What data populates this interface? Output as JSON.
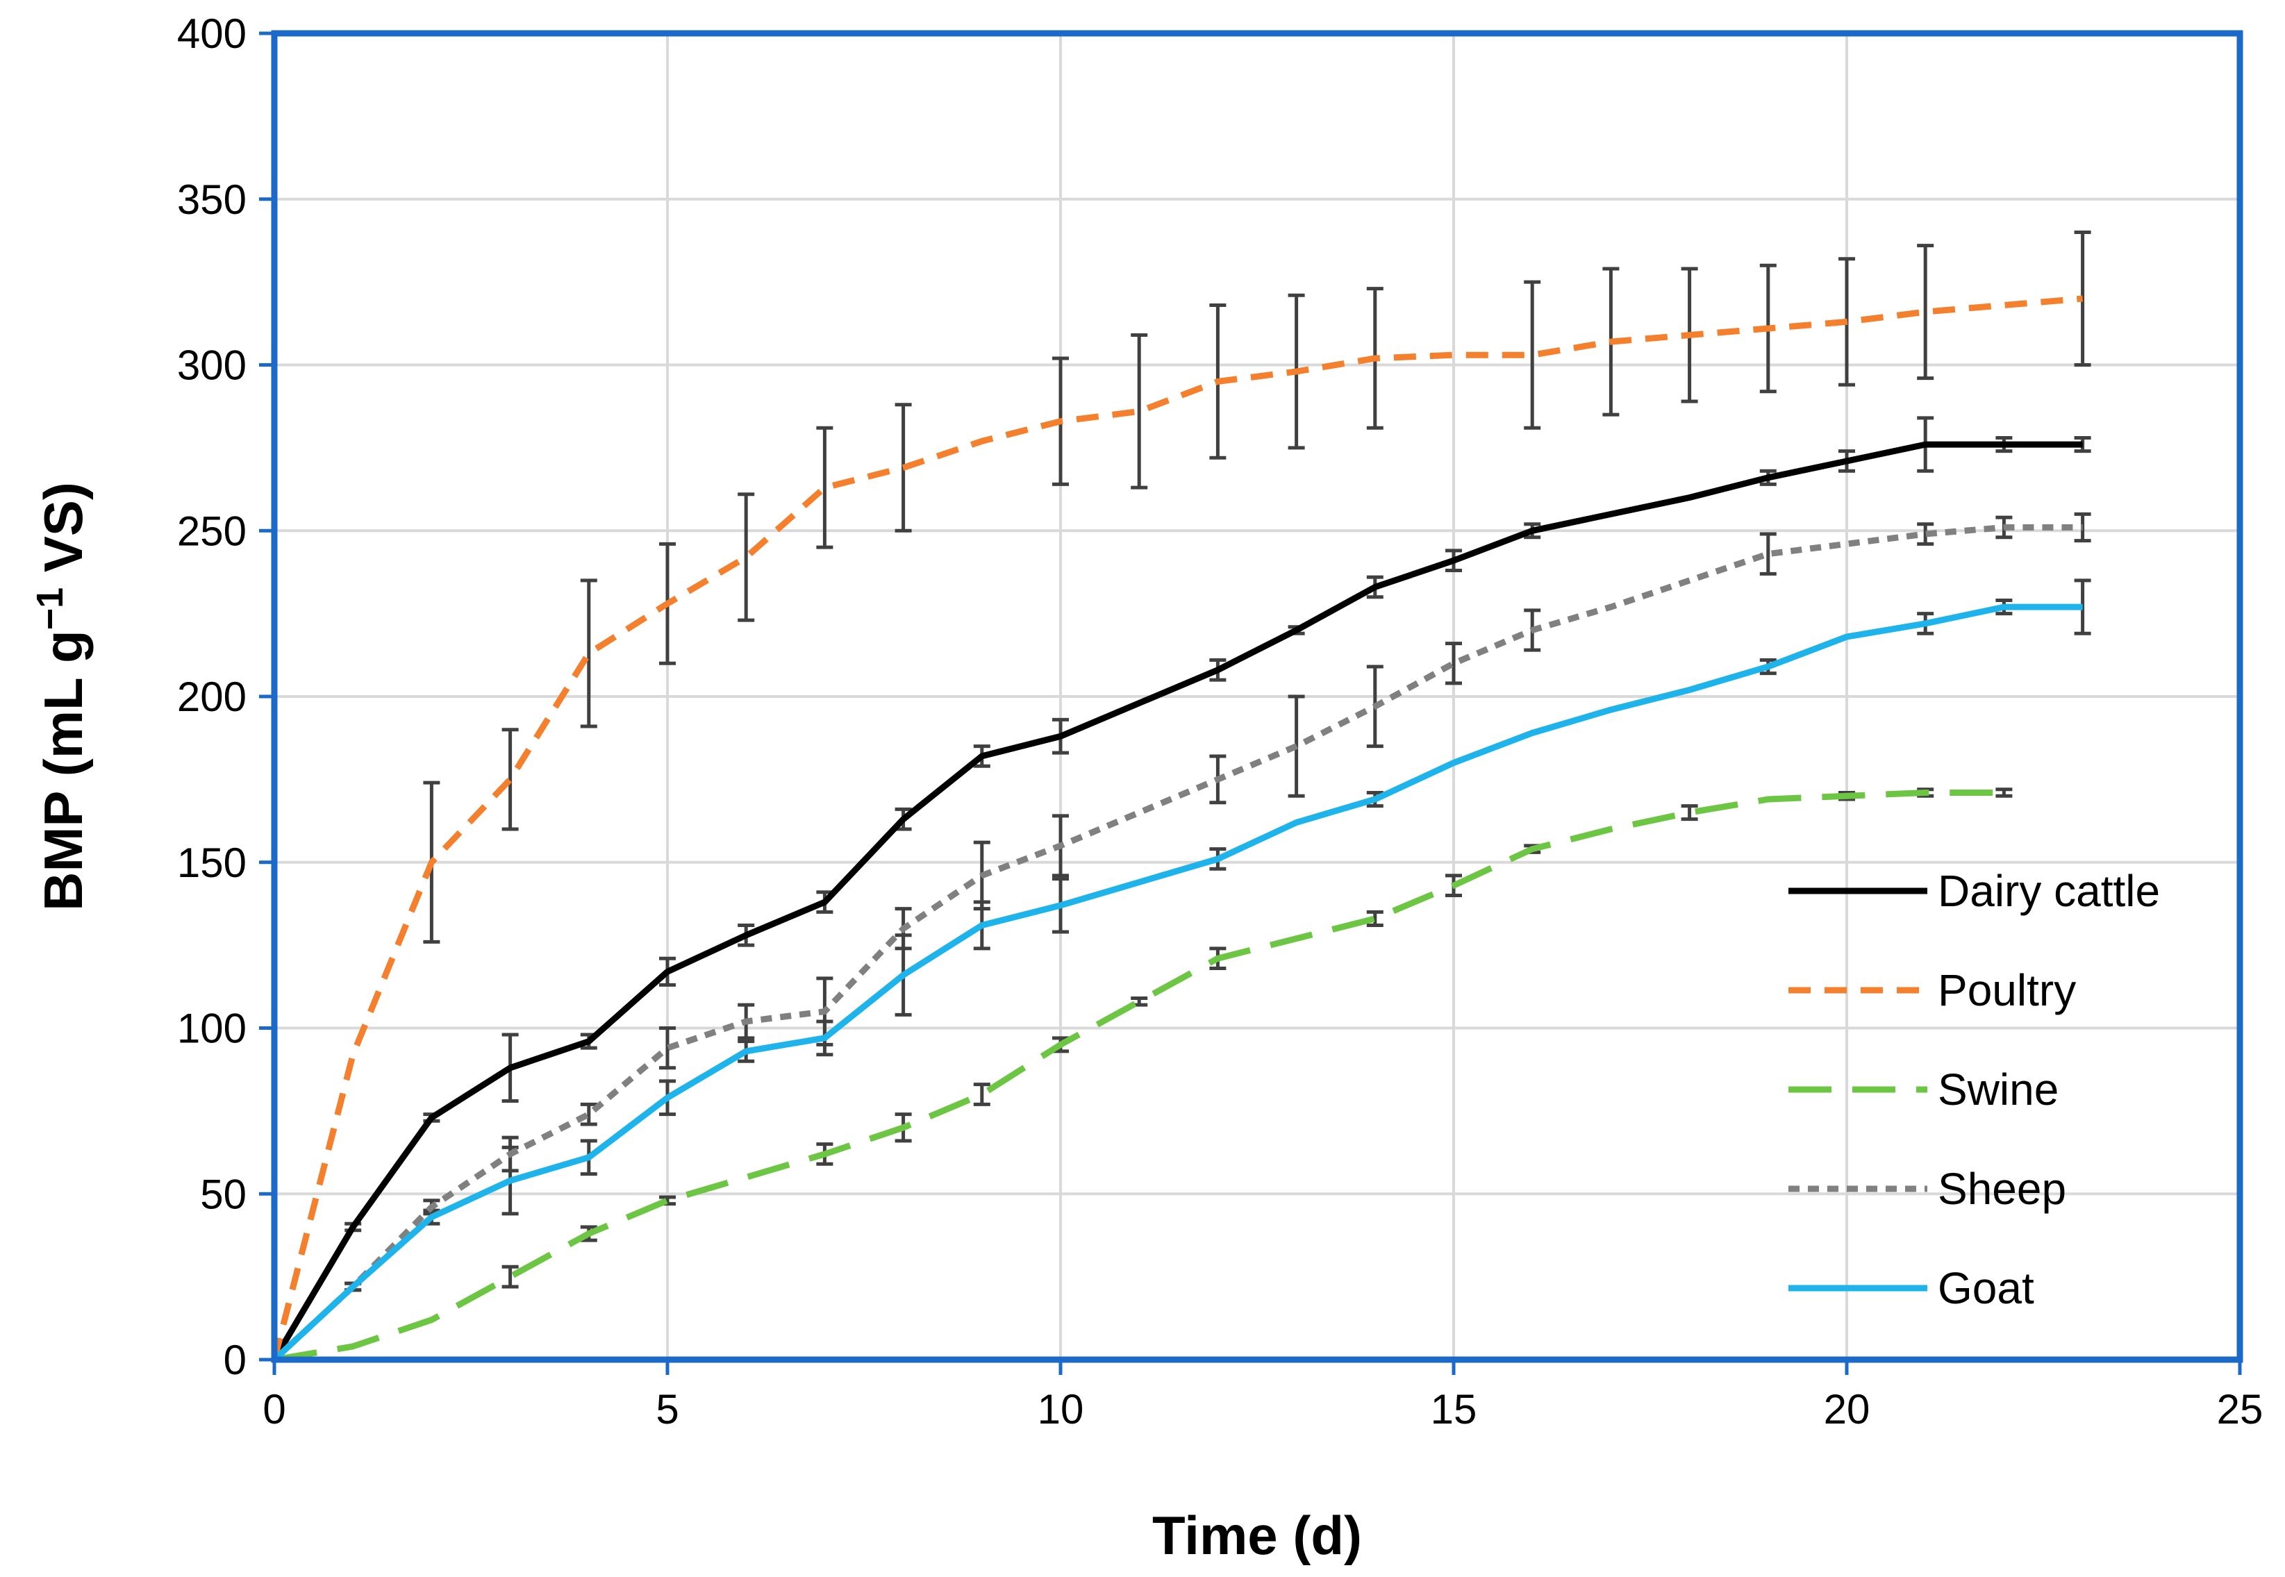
{
  "chart_data": {
    "type": "line",
    "title": "",
    "xlabel": "Time (d)",
    "ylabel_main": "BMP (mL g",
    "ylabel_sup": "−1",
    "ylabel_end": " VS)",
    "xlim": [
      0,
      25
    ],
    "ylim": [
      0,
      400
    ],
    "xticks": [
      0,
      5,
      10,
      15,
      20,
      25
    ],
    "yticks": [
      0,
      50,
      100,
      150,
      200,
      250,
      300,
      350,
      400
    ],
    "grid": true,
    "legend_position": "right",
    "series": [
      {
        "name": "Dairy cattle",
        "color": "#000000",
        "style": "solid",
        "x": [
          0,
          1,
          2,
          3,
          4,
          5,
          6,
          7,
          8,
          9,
          10,
          11,
          12,
          13,
          14,
          15,
          16,
          17,
          18,
          19,
          20,
          21,
          22,
          23
        ],
        "y": [
          0,
          40,
          73,
          88,
          96,
          117,
          128,
          138,
          163,
          182,
          188,
          198,
          208,
          220,
          233,
          241,
          250,
          255,
          260,
          266,
          271,
          276,
          276,
          276
        ],
        "err": [
          0,
          1,
          1,
          10,
          2,
          4,
          3,
          3,
          3,
          3,
          5,
          0,
          3,
          1,
          3,
          3,
          2,
          0,
          0,
          2,
          3,
          8,
          2,
          2
        ]
      },
      {
        "name": "Poultry",
        "color": "#F47F2D",
        "style": "dashed",
        "x": [
          0,
          1,
          2,
          3,
          4,
          5,
          6,
          7,
          8,
          9,
          10,
          11,
          12,
          13,
          14,
          15,
          16,
          17,
          18,
          19,
          20,
          21,
          22,
          23
        ],
        "y": [
          0,
          92,
          150,
          175,
          213,
          228,
          242,
          263,
          269,
          277,
          283,
          286,
          295,
          298,
          302,
          303,
          303,
          307,
          309,
          311,
          313,
          316,
          318,
          320
        ],
        "err": [
          0,
          0,
          24,
          15,
          22,
          18,
          19,
          18,
          19,
          0,
          19,
          23,
          23,
          23,
          21,
          0,
          22,
          22,
          20,
          19,
          19,
          20,
          0,
          20
        ]
      },
      {
        "name": "Swine",
        "color": "#6CC644",
        "style": "longdash",
        "x": [
          0,
          1,
          2,
          3,
          4,
          5,
          6,
          7,
          8,
          9,
          10,
          11,
          12,
          13,
          14,
          15,
          16,
          17,
          18,
          19,
          20,
          21,
          22
        ],
        "y": [
          0,
          4,
          12,
          25,
          38,
          48,
          55,
          62,
          70,
          80,
          95,
          108,
          121,
          127,
          133,
          143,
          154,
          160,
          165,
          169,
          170,
          171,
          171
        ],
        "err": [
          0,
          0,
          0,
          3,
          2,
          1,
          0,
          3,
          4,
          3,
          2,
          1,
          3,
          0,
          2,
          3,
          1,
          0,
          2,
          0,
          1,
          1,
          1
        ]
      },
      {
        "name": "Sheep",
        "color": "#808080",
        "style": "dotted",
        "x": [
          0,
          1,
          2,
          3,
          4,
          5,
          6,
          7,
          8,
          9,
          10,
          11,
          12,
          13,
          14,
          15,
          16,
          17,
          18,
          19,
          20,
          21,
          22,
          23
        ],
        "y": [
          0,
          22,
          46,
          62,
          74,
          94,
          102,
          105,
          130,
          146,
          155,
          165,
          175,
          185,
          197,
          210,
          220,
          227,
          235,
          243,
          246,
          249,
          251,
          251
        ],
        "err": [
          0,
          1,
          2,
          5,
          3,
          6,
          5,
          10,
          6,
          10,
          9,
          0,
          7,
          15,
          12,
          6,
          6,
          0,
          0,
          6,
          0,
          3,
          3,
          4
        ]
      },
      {
        "name": "Goat",
        "color": "#1EB4EB",
        "style": "solid",
        "x": [
          0,
          1,
          2,
          3,
          4,
          5,
          6,
          7,
          8,
          9,
          10,
          11,
          12,
          13,
          14,
          15,
          16,
          17,
          18,
          19,
          20,
          21,
          22,
          23
        ],
        "y": [
          0,
          22,
          43,
          54,
          61,
          79,
          93,
          97,
          116,
          131,
          137,
          144,
          151,
          162,
          169,
          180,
          189,
          196,
          202,
          209,
          218,
          222,
          227,
          227
        ],
        "err": [
          0,
          1,
          2,
          10,
          5,
          5,
          3,
          5,
          12,
          7,
          8,
          0,
          3,
          0,
          2,
          0,
          0,
          0,
          0,
          2,
          0,
          3,
          2,
          8
        ]
      }
    ]
  }
}
